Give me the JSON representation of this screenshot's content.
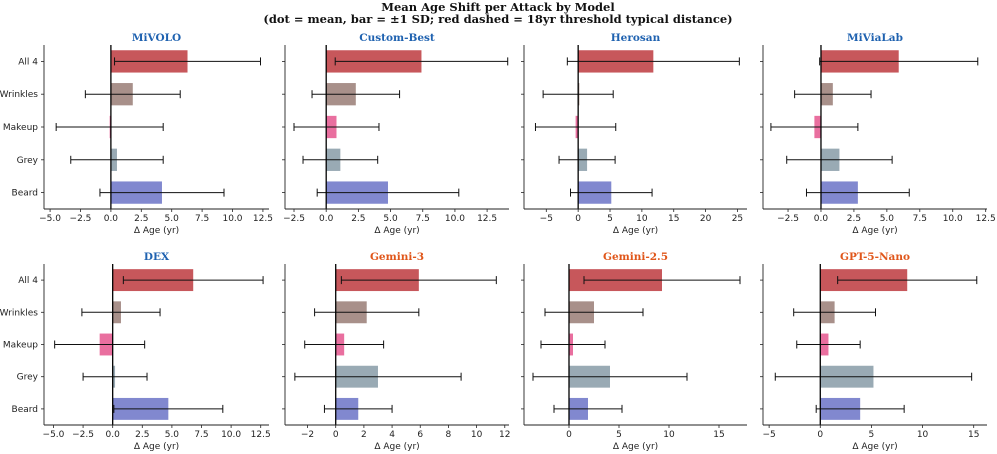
{
  "figure": {
    "title_line1": "Mean Age Shift per Attack by Model",
    "title_line2": "(dot = mean, bar = ±1 SD; red dashed = 18yr threshold typical distance)"
  },
  "colors": {
    "All 4": "#c44e52",
    "Wrinkles": "#a38a84",
    "Makeup": "#e8679a",
    "Grey": "#93a5b0",
    "Beard": "#7a82cc",
    "title_blue": "#1f62b0",
    "title_orange": "#e0561a"
  },
  "chart_data": [
    {
      "type": "bar",
      "orientation": "horizontal",
      "title": "MiVOLO",
      "title_color": "blue",
      "xlabel": "Δ Age (yr)",
      "categories": [
        "All 4",
        "Wrinkles",
        "Makeup",
        "Grey",
        "Beard"
      ],
      "values": [
        6.3,
        1.8,
        -0.1,
        0.5,
        4.2
      ],
      "sd": [
        6.0,
        3.9,
        4.4,
        3.8,
        5.1
      ],
      "xlim": [
        -5.5,
        13.0
      ],
      "xticks": [
        -5.0,
        -2.5,
        0.0,
        2.5,
        5.0,
        7.5,
        10.0,
        12.5
      ],
      "xtick_labels": [
        "−5.0",
        "−2.5",
        "0.0",
        "2.5",
        "5.0",
        "7.5",
        "10.0",
        "12.5"
      ]
    },
    {
      "type": "bar",
      "orientation": "horizontal",
      "title": "Custom-Best",
      "title_color": "blue",
      "xlabel": "Δ Age (yr)",
      "categories": [
        "All 4",
        "Wrinkles",
        "Makeup",
        "Grey",
        "Beard"
      ],
      "values": [
        7.4,
        2.3,
        0.8,
        1.1,
        4.8
      ],
      "sd": [
        6.7,
        3.4,
        3.3,
        2.9,
        5.5
      ],
      "xlim": [
        -3.2,
        14.2
      ],
      "xticks": [
        -2.5,
        0.0,
        2.5,
        5.0,
        7.5,
        10.0,
        12.5
      ],
      "xtick_labels": [
        "−2.5",
        "0.0",
        "2.5",
        "5.0",
        "7.5",
        "10.0",
        "12.5"
      ]
    },
    {
      "type": "bar",
      "orientation": "horizontal",
      "title": "Herosan",
      "title_color": "blue",
      "xlabel": "Δ Age (yr)",
      "categories": [
        "All 4",
        "Wrinkles",
        "Makeup",
        "Grey",
        "Beard"
      ],
      "values": [
        11.8,
        0.0,
        -0.4,
        1.4,
        5.2
      ],
      "sd": [
        13.5,
        5.5,
        6.3,
        4.4,
        6.4
      ],
      "xlim": [
        -8.5,
        26.5
      ],
      "xticks": [
        -5,
        0,
        5,
        10,
        15,
        20,
        25
      ],
      "xtick_labels": [
        "−5",
        "0",
        "5",
        "10",
        "15",
        "20",
        "25"
      ]
    },
    {
      "type": "bar",
      "orientation": "horizontal",
      "title": "MiViaLab",
      "title_color": "blue",
      "xlabel": "Δ Age (yr)",
      "categories": [
        "All 4",
        "Wrinkles",
        "Makeup",
        "Grey",
        "Beard"
      ],
      "values": [
        5.9,
        0.9,
        -0.5,
        1.4,
        2.8
      ],
      "sd": [
        6.0,
        2.9,
        3.3,
        4.0,
        3.9
      ],
      "xlim": [
        -4.4,
        12.6
      ],
      "xticks": [
        -2.5,
        0.0,
        2.5,
        5.0,
        7.5,
        10.0,
        12.5
      ],
      "xtick_labels": [
        "−2.5",
        "0.0",
        "2.5",
        "5.0",
        "7.5",
        "10.0",
        "12.5"
      ]
    },
    {
      "type": "bar",
      "orientation": "horizontal",
      "title": "DEX",
      "title_color": "blue",
      "xlabel": "Δ Age (yr)",
      "categories": [
        "All 4",
        "Wrinkles",
        "Makeup",
        "Grey",
        "Beard"
      ],
      "values": [
        6.8,
        0.7,
        -1.1,
        0.2,
        4.7
      ],
      "sd": [
        5.9,
        3.3,
        3.8,
        2.7,
        4.6
      ],
      "xlim": [
        -5.8,
        13.2
      ],
      "xticks": [
        -5.0,
        -2.5,
        0.0,
        2.5,
        5.0,
        7.5,
        10.0,
        12.5
      ],
      "xtick_labels": [
        "−5.0",
        "−2.5",
        "0.0",
        "2.5",
        "5.0",
        "7.5",
        "10.0",
        "12.5"
      ]
    },
    {
      "type": "bar",
      "orientation": "horizontal",
      "title": "Gemini-3",
      "title_color": "orange",
      "xlabel": "Δ Age (yr)",
      "categories": [
        "All 4",
        "Wrinkles",
        "Makeup",
        "Grey",
        "Beard"
      ],
      "values": [
        5.9,
        2.2,
        0.6,
        3.0,
        1.6
      ],
      "sd": [
        5.5,
        3.7,
        2.8,
        5.9,
        2.4
      ],
      "xlim": [
        -3.6,
        12.3
      ],
      "xticks": [
        -2,
        0,
        2,
        4,
        6,
        8,
        10,
        12
      ],
      "xtick_labels": [
        "−2",
        "0",
        "2",
        "4",
        "6",
        "8",
        "10",
        "12"
      ]
    },
    {
      "type": "bar",
      "orientation": "horizontal",
      "title": "Gemini-2.5",
      "title_color": "orange",
      "xlabel": "Δ Age (yr)",
      "categories": [
        "All 4",
        "Wrinkles",
        "Makeup",
        "Grey",
        "Beard"
      ],
      "values": [
        9.3,
        2.5,
        0.4,
        4.1,
        1.9
      ],
      "sd": [
        7.8,
        4.9,
        3.2,
        7.7,
        3.4
      ],
      "xlim": [
        -4.5,
        17.8
      ],
      "xticks": [
        0,
        5,
        10,
        15
      ],
      "xtick_labels": [
        "0",
        "5",
        "10",
        "15"
      ]
    },
    {
      "type": "bar",
      "orientation": "horizontal",
      "title": "GPT-5-Nano",
      "title_color": "orange",
      "xlabel": "Δ Age (yr)",
      "categories": [
        "All 4",
        "Wrinkles",
        "Makeup",
        "Grey",
        "Beard"
      ],
      "values": [
        8.5,
        1.4,
        0.8,
        5.2,
        3.9
      ],
      "sd": [
        6.8,
        4.0,
        3.1,
        9.6,
        4.3
      ],
      "xlim": [
        -5.6,
        16.3
      ],
      "xticks": [
        -5,
        0,
        5,
        10,
        15
      ],
      "xtick_labels": [
        "−5",
        "0",
        "5",
        "10",
        "15"
      ]
    }
  ]
}
